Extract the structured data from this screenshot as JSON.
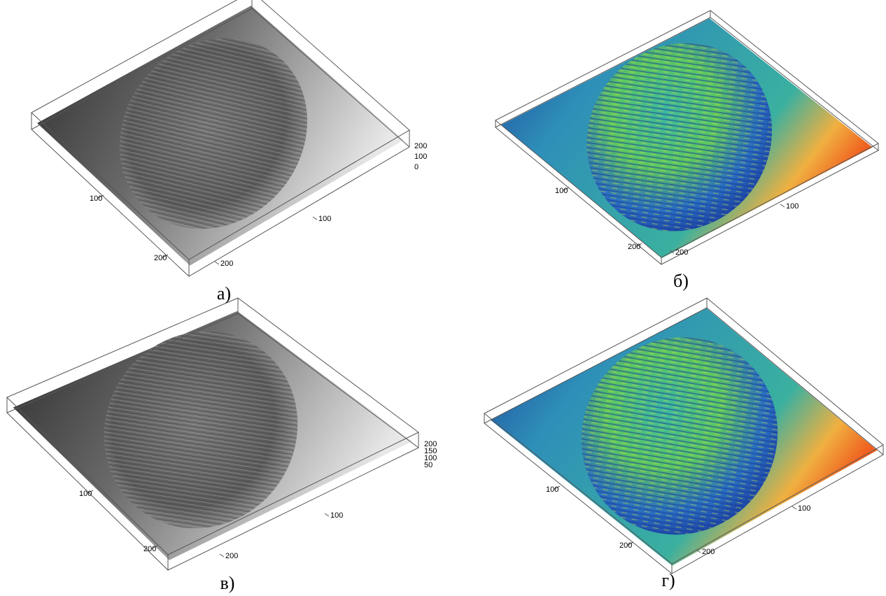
{
  "panels": [
    {
      "caption": "а)",
      "axis_labels": [
        "100",
        "100",
        "200",
        "200"
      ],
      "z_labels": [
        "200",
        "100",
        "0"
      ],
      "style": "gray"
    },
    {
      "caption": "б)",
      "axis_labels": [
        "100",
        "100",
        "200",
        "200"
      ],
      "z_labels": [],
      "style": "color"
    },
    {
      "caption": "в)",
      "axis_labels": [
        "100",
        "100",
        "200",
        "200"
      ],
      "z_labels": [
        "200",
        "150",
        "100",
        "50"
      ],
      "style": "gray"
    },
    {
      "caption": "г)",
      "axis_labels": [
        "100",
        "100",
        "200",
        "200"
      ],
      "z_labels": [],
      "style": "color"
    }
  ]
}
